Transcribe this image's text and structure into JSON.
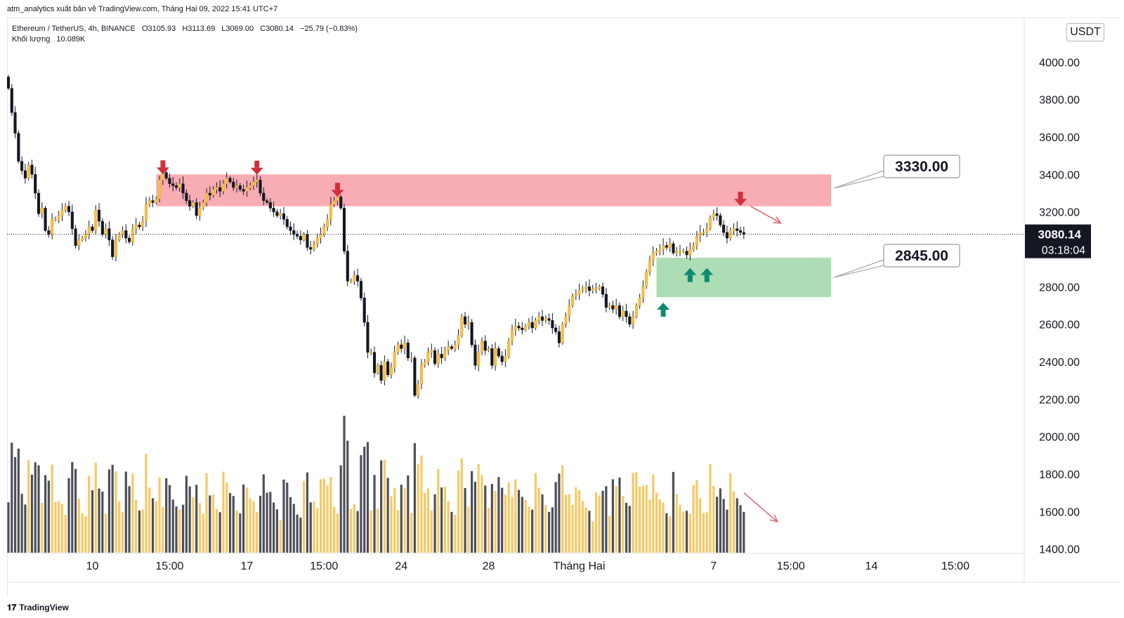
{
  "header": {
    "publisher_note": "atm_analytics xuất bản về TradingView.com, Tháng Hai 09, 2022 15:41 UTC+7"
  },
  "legend": {
    "symbol": "Ethereum / TetherUS, 4h, BINANCE",
    "open": "O3105.93",
    "high": "H3113.69",
    "low": "L3069.00",
    "close": "C3080.14",
    "change": "−25.79 (−0.83%)",
    "volume_label": "Khối lượng",
    "volume_value": "10.089K"
  },
  "price_axis": {
    "unit": "USDT"
  },
  "footer": {
    "brand": "TradingView"
  },
  "colors": {
    "bull": "#f5c04a",
    "bear": "#131722",
    "resistance_zone": "#f8a8b0",
    "support_zone": "#a8dbb0",
    "down_arrow": "#d32f3a",
    "up_arrow": "#0b8a6e",
    "trend_arrow": "#e05a68"
  },
  "chart_data": {
    "type": "candlestick",
    "symbol": "ETHUSDT",
    "interval": "4h",
    "ylim": [
      1380,
      4200
    ],
    "yticks": [
      1400,
      1600,
      1800,
      2000,
      2200,
      2400,
      2600,
      2800,
      3200,
      3400,
      3600,
      3800,
      4000
    ],
    "ytick_labels": [
      "1400.00",
      "1600.00",
      "1800.00",
      "2000.00",
      "2200.00",
      "2400.00",
      "2600.00",
      "2800.00",
      "3200.00",
      "3400.00",
      "3600.00",
      "3800.00",
      "4000.00"
    ],
    "xtick_labels": [
      "10",
      "15:00",
      "17",
      "15:00",
      "24",
      "28",
      "Tháng Hai",
      "7",
      "15:00",
      "14",
      "15:00"
    ],
    "xtick_index": [
      25,
      48,
      71,
      94,
      117,
      143,
      170,
      210,
      233,
      257,
      282
    ],
    "current_price": 3080.14,
    "current_price_label": "3080.14",
    "countdown": "03:18:04",
    "zones": [
      {
        "kind": "resistance",
        "from_index": 44,
        "to_index": 245,
        "low": 3230,
        "high": 3400,
        "label": "3330.00"
      },
      {
        "kind": "support",
        "from_index": 193,
        "to_index": 245,
        "low": 2745,
        "high": 2955,
        "label": "2845.00"
      }
    ],
    "down_arrows": [
      {
        "index": 46,
        "price": 3400
      },
      {
        "index": 74,
        "price": 3398
      },
      {
        "index": 98,
        "price": 3280
      },
      {
        "index": 218,
        "price": 3232
      }
    ],
    "up_arrows": [
      {
        "index": 195,
        "price": 2715
      },
      {
        "index": 203,
        "price": 2900
      },
      {
        "index": 208,
        "price": 2900
      }
    ],
    "trend_arrows": [
      {
        "from_index": 221,
        "from_price": 3230,
        "to_index": 230,
        "to_price": 3140
      },
      {
        "from_index": 219,
        "from_price": 1700,
        "to_index": 229,
        "to_price": 1545
      }
    ],
    "volume_max_k": 100,
    "closes": [
      3860,
      3730,
      3620,
      3470,
      3420,
      3380,
      3450,
      3400,
      3300,
      3190,
      3220,
      3100,
      3080,
      3160,
      3160,
      3180,
      3210,
      3230,
      3200,
      3110,
      3020,
      3050,
      3060,
      3080,
      3120,
      3100,
      3210,
      3150,
      3080,
      3110,
      3050,
      2960,
      3050,
      3080,
      3100,
      3060,
      3040,
      3110,
      3130,
      3120,
      3150,
      3240,
      3260,
      3250,
      3270,
      3370,
      3410,
      3380,
      3350,
      3340,
      3330,
      3350,
      3300,
      3260,
      3230,
      3250,
      3180,
      3220,
      3250,
      3300,
      3290,
      3320,
      3330,
      3310,
      3350,
      3380,
      3360,
      3330,
      3340,
      3320,
      3310,
      3330,
      3340,
      3360,
      3370,
      3300,
      3260,
      3250,
      3220,
      3200,
      3180,
      3190,
      3160,
      3120,
      3100,
      3080,
      3070,
      3050,
      3080,
      3010,
      3000,
      3030,
      3060,
      3080,
      3120,
      3160,
      3240,
      3260,
      3280,
      3220,
      2990,
      2830,
      2830,
      2860,
      2830,
      2740,
      2610,
      2450,
      2450,
      2340,
      2380,
      2300,
      2400,
      2330,
      2370,
      2450,
      2490,
      2470,
      2500,
      2420,
      2420,
      2220,
      2280,
      2380,
      2400,
      2450,
      2460,
      2390,
      2440,
      2420,
      2460,
      2480,
      2470,
      2490,
      2540,
      2640,
      2600,
      2610,
      2490,
      2380,
      2450,
      2510,
      2460,
      2470,
      2380,
      2470,
      2430,
      2400,
      2430,
      2510,
      2570,
      2590,
      2580,
      2570,
      2590,
      2610,
      2580,
      2620,
      2640,
      2620,
      2630,
      2620,
      2580,
      2560,
      2500,
      2600,
      2640,
      2700,
      2750,
      2760,
      2780,
      2790,
      2800,
      2780,
      2790,
      2790,
      2800,
      2760,
      2690,
      2700,
      2680,
      2700,
      2640,
      2670,
      2640,
      2600,
      2640,
      2700,
      2740,
      2800,
      2880,
      2940,
      2980,
      2990,
      3000,
      3020,
      3010,
      3030,
      2980,
      2990,
      2990,
      2990,
      2970,
      3000,
      3020,
      3070,
      3090,
      3090,
      3110,
      3170,
      3190,
      3180,
      3130,
      3090,
      3060,
      3100,
      3110,
      3100,
      3090,
      3080
    ]
  }
}
